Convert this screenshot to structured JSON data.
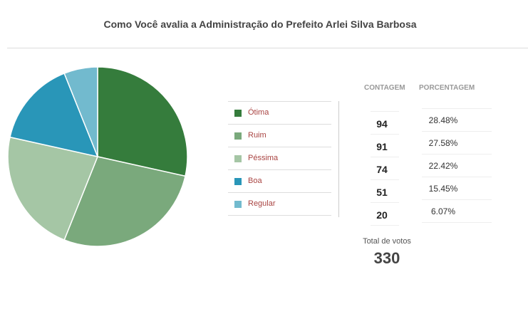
{
  "chart_data": {
    "type": "pie",
    "title": "Como Você avalia a Administração do Prefeito Arlei Silva Barbosa",
    "categories": [
      "Ótima",
      "Ruim",
      "Péssima",
      "Boa",
      "Regular"
    ],
    "values": [
      94,
      91,
      74,
      51,
      20
    ],
    "percentages": [
      "28.48%",
      "27.58%",
      "22.42%",
      "15.45%",
      "6.07%"
    ],
    "colors": [
      "#357c3c",
      "#7aa97c",
      "#a5c6a5",
      "#2996b8",
      "#72bace"
    ],
    "legend_position": "right"
  },
  "table": {
    "count_header": "CONTAGEM",
    "percent_header": "PORCENTAGEM"
  },
  "total": {
    "label": "Total de votos",
    "value": "330"
  }
}
